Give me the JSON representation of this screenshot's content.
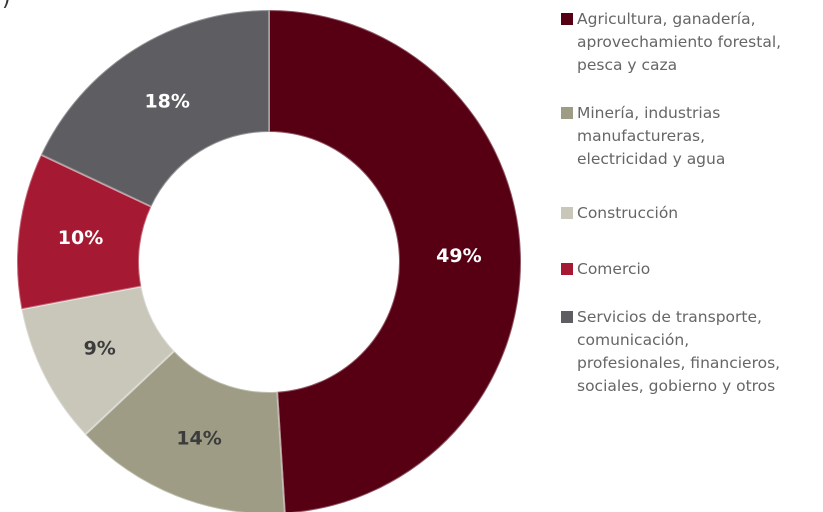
{
  "chart_data": {
    "type": "pie",
    "donut": true,
    "title": "",
    "corner_text": ")",
    "categories": [
      "Agricultura, ganadería,\naprovechamiento forestal,\npesca y caza",
      "Minería, industrias\nmanufactureras,\nelectricidad y agua",
      "Construcción",
      "Comercio",
      "Servicios de transporte,\ncomunicación,\nprofesionales, financieros,\nsociales, gobierno y otros"
    ],
    "values": [
      49,
      14,
      9,
      10,
      18
    ],
    "value_labels": [
      "49%",
      "14%",
      "9%",
      "10%",
      "18%"
    ],
    "colors": [
      "#570014",
      "#9E9C84",
      "#C9C7BA",
      "#A51A32",
      "#5E5D61"
    ],
    "label_colors": [
      "#ffffff",
      "#3c3c3c",
      "#3c3c3c",
      "#ffffff",
      "#ffffff"
    ],
    "legend_position": "right"
  }
}
